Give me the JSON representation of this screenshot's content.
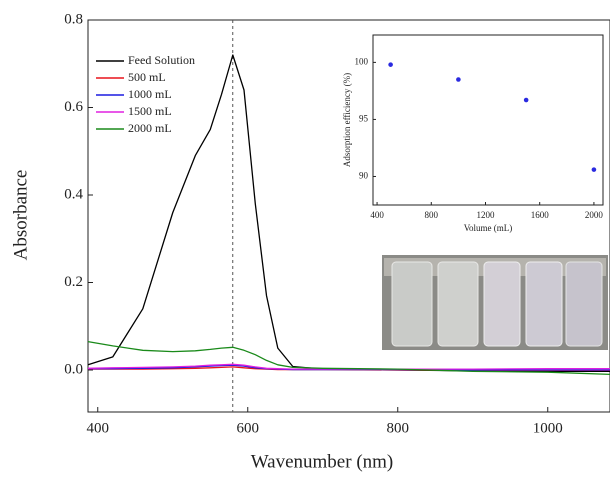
{
  "chart_data": [
    {
      "type": "line",
      "x_label": "Wavenumber (nm)",
      "y_label": "Absorbance",
      "x": [
        387,
        420,
        460,
        500,
        530,
        550,
        565,
        580,
        595,
        610,
        625,
        640,
        660,
        700,
        800,
        900,
        1000,
        1083
      ],
      "series": [
        {
          "name": "Feed Solution",
          "color": "#000000",
          "values": [
            0.012,
            0.03,
            0.14,
            0.36,
            0.49,
            0.55,
            0.63,
            0.72,
            0.64,
            0.38,
            0.17,
            0.05,
            0.008,
            0.002,
            0,
            -0.002,
            -0.003,
            -0.003
          ]
        },
        {
          "name": "500 mL",
          "color": "#e8141c",
          "values": [
            0.002,
            0.002,
            0.002,
            0.003,
            0.004,
            0.005,
            0.006,
            0.007,
            0.005,
            0.003,
            0.002,
            0.001,
            0.001,
            0.001,
            0,
            -0.001,
            -0.001,
            -0.001
          ]
        },
        {
          "name": "1000 mL",
          "color": "#1c1ce0",
          "values": [
            0.003,
            0.003,
            0.004,
            0.005,
            0.007,
            0.009,
            0.01,
            0.011,
            0.009,
            0.005,
            0.003,
            0.002,
            0.001,
            0.001,
            0.001,
            0,
            0,
            0
          ]
        },
        {
          "name": "1500 mL",
          "color": "#e020e0",
          "values": [
            0.004,
            0.005,
            0.006,
            0.007,
            0.009,
            0.011,
            0.012,
            0.013,
            0.011,
            0.007,
            0.004,
            0.003,
            0.002,
            0.002,
            0.002,
            0.002,
            0.003,
            0.003
          ]
        },
        {
          "name": "2000 mL",
          "color": "#1a8a1a",
          "values": [
            0.065,
            0.055,
            0.045,
            0.042,
            0.044,
            0.047,
            0.05,
            0.052,
            0.045,
            0.035,
            0.022,
            0.012,
            0.006,
            0.004,
            0.002,
            -0.003,
            -0.005,
            -0.01
          ]
        }
      ],
      "xlim": [
        387,
        1083
      ],
      "ylim": [
        -0.096,
        0.8
      ],
      "xticks": [
        400,
        600,
        800,
        1000
      ],
      "yticks": [
        {
          "value": 0,
          "label": "0.0"
        },
        0.2,
        0.4,
        0.6,
        0.8
      ],
      "reference_line_x": 580,
      "legend": "upper left"
    },
    {
      "type": "scatter",
      "x_label": "Volume (mL)",
      "y_label": "Adsorption efficiency (%)",
      "x": [
        500,
        1000,
        1500,
        2000
      ],
      "values": [
        99.8,
        98.5,
        96.7,
        90.6
      ],
      "color": "#2a2ae0",
      "xlim": [
        370,
        2067
      ],
      "ylim": [
        87.5,
        102.4
      ],
      "xticks": [
        400,
        800,
        1200,
        1600,
        2000
      ],
      "yticks": [
        90,
        95,
        100
      ]
    }
  ]
}
